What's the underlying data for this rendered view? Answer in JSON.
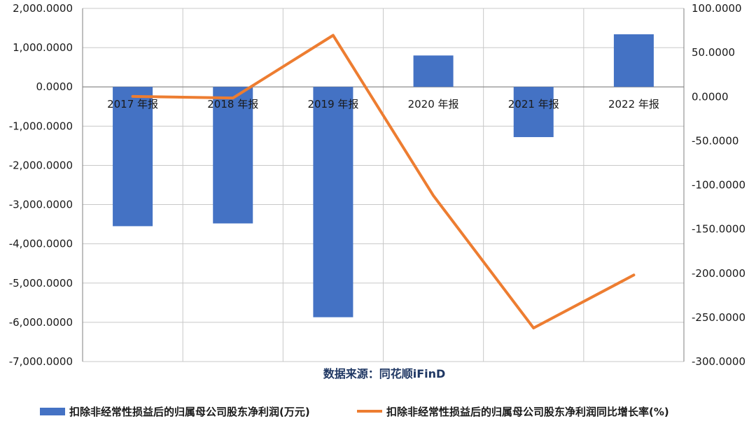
{
  "colors": {
    "bar": "#4472c4",
    "line": "#ed7d31",
    "grid": "#c8c8c8",
    "axis": "#7f7f7f",
    "source_text": "#1f3763"
  },
  "source_label": "数据来源：同花顺iFinD",
  "chart_data": {
    "type": "bar",
    "categories": [
      "2017 年报",
      "2018 年报",
      "2019 年报",
      "2020 年报",
      "2021 年报",
      "2022 年报"
    ],
    "series": [
      {
        "name": "扣除非经常性损益后的归属母公司股东净利润(万元)",
        "type": "bar",
        "axis": "left",
        "values": [
          -3550,
          -3480,
          -5870,
          800,
          -1280,
          1340
        ]
      },
      {
        "name": "扣除非经常性损益后的归属母公司股东净利润同比增长率(%)",
        "type": "line",
        "axis": "right",
        "values": [
          0.3,
          -1.5,
          69.5,
          -112,
          -262,
          -202
        ]
      }
    ],
    "y_left": {
      "ylim": [
        -7000,
        2000
      ],
      "ticks": [
        2000,
        1000,
        0,
        -1000,
        -2000,
        -3000,
        -4000,
        -5000,
        -6000,
        -7000
      ],
      "tick_labels": [
        "2,000.0000",
        "1,000.0000",
        "0.0000",
        "-1,000.0000",
        "-2,000.0000",
        "-3,000.0000",
        "-4,000.0000",
        "-5,000.0000",
        "-6,000.0000",
        "-7,000.0000"
      ]
    },
    "y_right": {
      "ylim": [
        -300,
        100
      ],
      "ticks": [
        100,
        50,
        0,
        -50,
        -100,
        -150,
        -200,
        -250,
        -300
      ],
      "tick_labels": [
        "100.0000",
        "50.0000",
        "0.0000",
        "-50.0000",
        "-100.0000",
        "-150.0000",
        "-200.0000",
        "-250.0000",
        "-300.0000"
      ]
    },
    "grid": true,
    "legend_position": "bottom"
  }
}
